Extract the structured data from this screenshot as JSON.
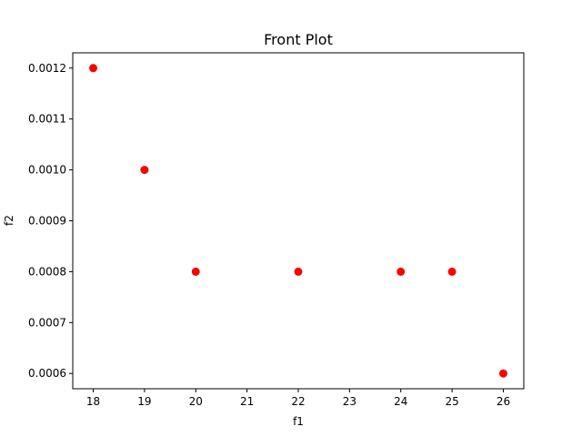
{
  "chart_data": {
    "type": "scatter",
    "title": "Front Plot",
    "xlabel": "f1",
    "ylabel": "f2",
    "xlim": [
      17.6,
      26.4
    ],
    "ylim": [
      0.00057,
      0.00123
    ],
    "x_ticks": [
      18,
      19,
      20,
      21,
      22,
      23,
      24,
      25,
      26
    ],
    "y_ticks": [
      0.0006,
      0.0007,
      0.0008,
      0.0009,
      0.001,
      0.0011,
      0.0012
    ],
    "y_tick_labels": [
      "0.0006",
      "0.0007",
      "0.0008",
      "0.0009",
      "0.0010",
      "0.0011",
      "0.0012"
    ],
    "grid": false,
    "marker_color": "#ff0000",
    "points": [
      {
        "x": 18,
        "y": 0.0012
      },
      {
        "x": 19,
        "y": 0.001
      },
      {
        "x": 20,
        "y": 0.0008
      },
      {
        "x": 22,
        "y": 0.0008
      },
      {
        "x": 24,
        "y": 0.0008
      },
      {
        "x": 25,
        "y": 0.0008
      },
      {
        "x": 26,
        "y": 0.0006
      }
    ]
  }
}
